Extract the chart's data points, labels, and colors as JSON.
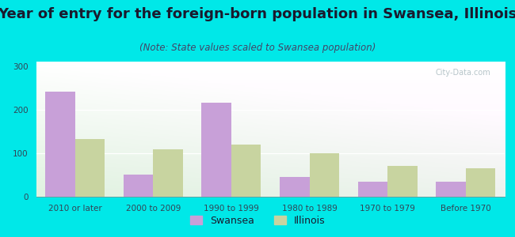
{
  "title": "Year of entry for the foreign-born population in Swansea, Illinois",
  "subtitle": "(Note: State values scaled to Swansea population)",
  "categories": [
    "2010 or later",
    "2000 to 2009",
    "1990 to 1999",
    "1980 to 1989",
    "1970 to 1979",
    "Before 1970"
  ],
  "swansea_values": [
    242,
    50,
    215,
    46,
    35,
    35
  ],
  "illinois_values": [
    133,
    108,
    120,
    100,
    70,
    65
  ],
  "swansea_color": "#c8a0d8",
  "illinois_color": "#c8d4a0",
  "background_outer": "#00e8e8",
  "ylim": [
    0,
    310
  ],
  "yticks": [
    0,
    100,
    200,
    300
  ],
  "bar_width": 0.38,
  "legend_swansea": "Swansea",
  "legend_illinois": "Illinois",
  "title_fontsize": 13,
  "subtitle_fontsize": 8.5,
  "tick_fontsize": 7.5,
  "legend_fontsize": 9,
  "title_color": "#1a1a2e",
  "subtitle_color": "#444466",
  "tick_color": "#334455"
}
